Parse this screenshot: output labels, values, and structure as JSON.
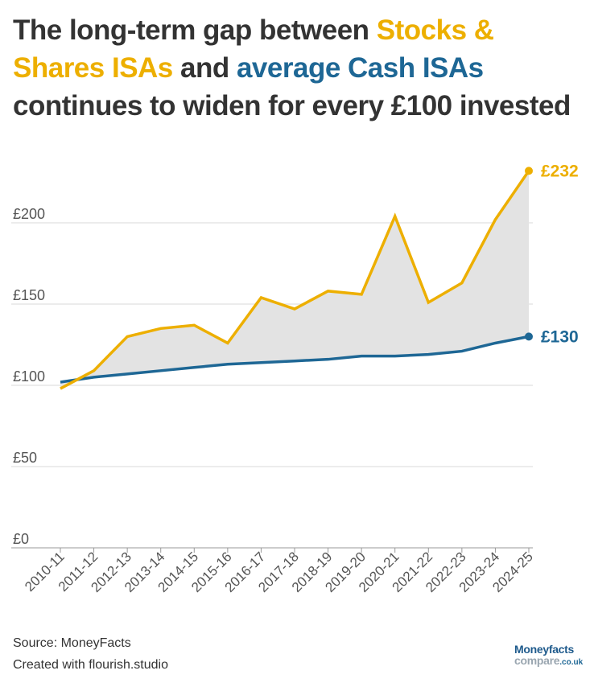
{
  "title": {
    "part1": "The long-term gap between ",
    "stocks": "Stocks & Shares ISAs",
    "part2": " and ",
    "cash": "average Cash ISAs",
    "part3": " continues to widen for every £100 invested"
  },
  "chart_data": {
    "type": "line",
    "categories": [
      "2010-11",
      "2011-12",
      "2012-13",
      "2013-14",
      "2014-15",
      "2015-16",
      "2016-17",
      "2017-18",
      "2018-19",
      "2019-20",
      "2020-21",
      "2021-22",
      "2022-23",
      "2023-24",
      "2024-25"
    ],
    "series": [
      {
        "name": "Stocks & Shares ISAs",
        "color": "#edaf00",
        "values": [
          98,
          109,
          130,
          135,
          137,
          126,
          154,
          147,
          158,
          156,
          204,
          151,
          163,
          202,
          232
        ],
        "end_label": "£232"
      },
      {
        "name": "average Cash ISAs",
        "color": "#1e6795",
        "values": [
          102,
          105,
          107,
          109,
          111,
          113,
          114,
          115,
          116,
          118,
          118,
          119,
          121,
          126,
          130
        ],
        "end_label": "£130"
      }
    ],
    "fill_between": true,
    "fill_color": "#e3e3e3",
    "ylim": [
      0,
      232
    ],
    "yticks": [
      0,
      50,
      100,
      150,
      200
    ],
    "ytick_labels": [
      "£0",
      "£50",
      "£100",
      "£150",
      "£200"
    ],
    "grid": true
  },
  "footer": {
    "source": "Source: MoneyFacts",
    "credit": "Created with flourish.studio"
  },
  "logo": {
    "line1": "Moneyfacts",
    "line2": "compare",
    "suffix": ".co.uk"
  }
}
